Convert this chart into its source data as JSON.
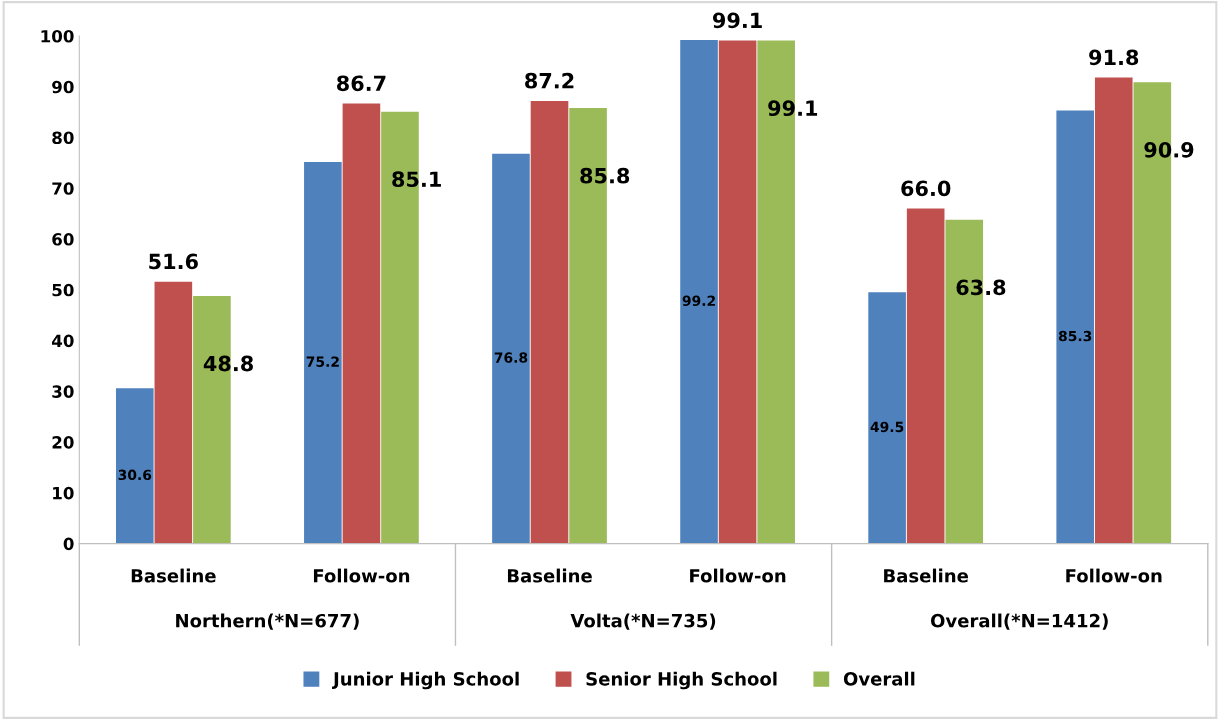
{
  "chart_data": {
    "type": "bar",
    "categories": [
      "Baseline",
      "Follow-on",
      "Baseline",
      "Follow-on",
      "Baseline",
      "Follow-on"
    ],
    "series": [
      {
        "name": "Junior High School",
        "color": "#4f81bd",
        "values": [
          30.6,
          75.2,
          76.8,
          99.2,
          49.5,
          85.3
        ],
        "value_labels": [
          "30.6",
          "75.2",
          "76.8",
          "99.2",
          "49.5",
          "85.3"
        ]
      },
      {
        "name": "Senior High School",
        "color": "#c0504d",
        "values": [
          51.6,
          86.7,
          87.2,
          99.1,
          66.0,
          91.8
        ],
        "value_labels": [
          "51.6",
          "86.7",
          "87.2",
          "99.1",
          "66.0",
          "91.8"
        ]
      },
      {
        "name": "Overall",
        "color": "#9bbb59",
        "values": [
          48.8,
          85.1,
          85.8,
          99.1,
          63.8,
          90.9
        ],
        "value_labels": [
          "48.8",
          "85.1",
          "85.8",
          "99.1",
          "63.8",
          "90.9"
        ]
      }
    ],
    "annotations": [
      "Northern(*N=677)",
      "Volta(*N=735)",
      "Overall(*N=1412)"
    ],
    "ylim": [
      0,
      100
    ],
    "yticks": [
      0,
      10,
      20,
      30,
      40,
      50,
      60,
      70,
      80,
      90,
      100
    ],
    "grid": false,
    "legend": "bottom"
  }
}
